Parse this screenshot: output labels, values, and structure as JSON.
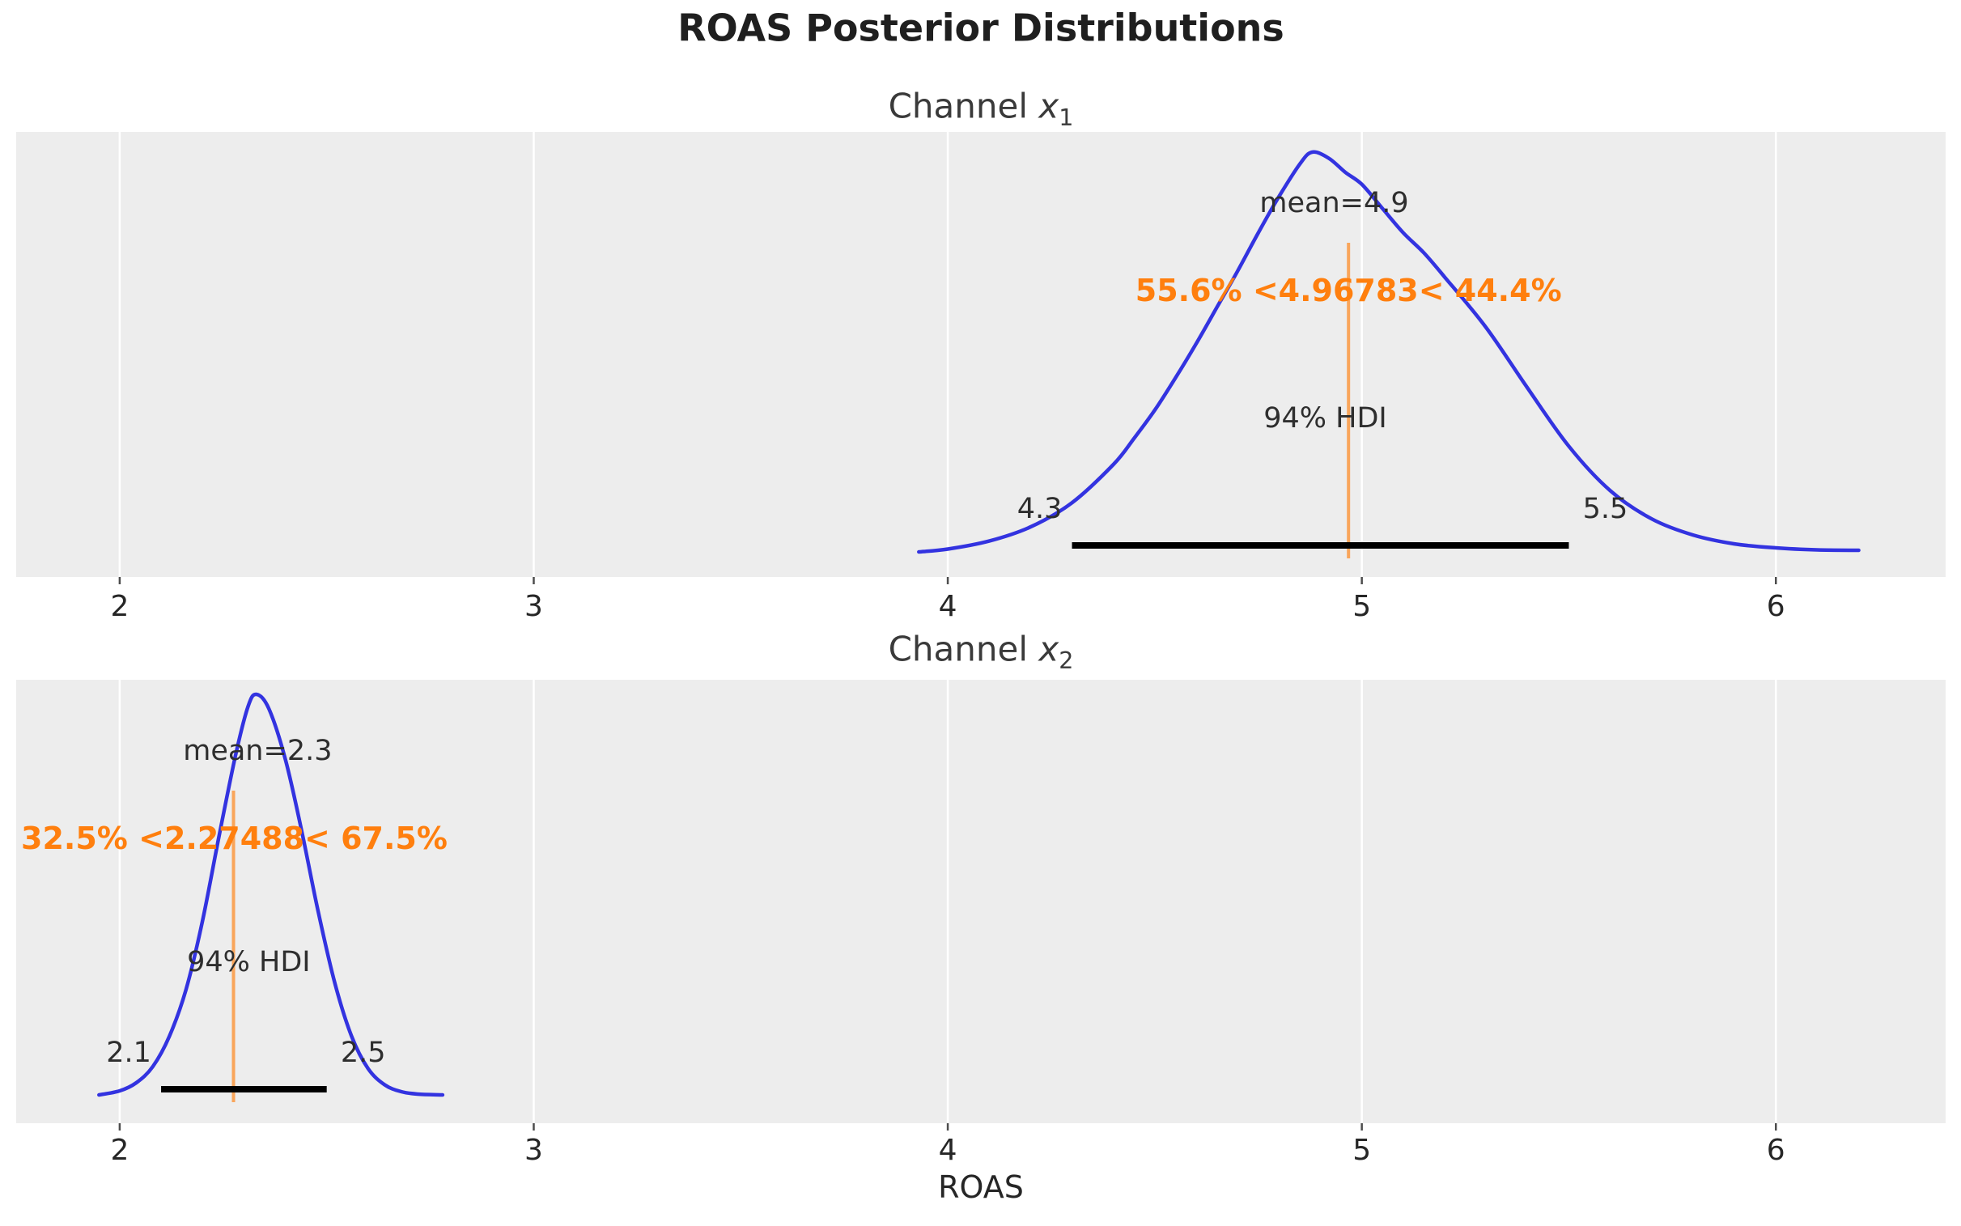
{
  "chart_data": {
    "type": "kde-posterior",
    "figure_title": "ROAS Posterior Distributions",
    "axis": {
      "xlabel": "ROAS",
      "ticks": [
        2,
        3,
        4,
        5,
        6
      ],
      "tick_labels": [
        "2",
        "3",
        "4",
        "5",
        "6"
      ],
      "x_min": 1.75,
      "x_max": 6.41,
      "grid": "vertical-white-gridlines-on-gray-panel"
    },
    "colors": {
      "curve": "#3333e0",
      "orange_text": "#ff7f0e",
      "ref_line": "rgba(255,127,14,0.66)",
      "panel_bg": "#ededed",
      "grid": "#ffffff",
      "hdi_bar": "#000000",
      "tick_mark": "#4d4d4d",
      "text": "#2e2e2e"
    },
    "charts": [
      {
        "type": "kde",
        "title_prefix": "Channel ",
        "title_var": "x",
        "title_sub": "1",
        "mean_label": "mean=4.9",
        "mean": 4.9,
        "ref_text": "55.6% <4.96783< 44.4%",
        "ref_value": 4.96783,
        "hdi_text": "94% HDI",
        "hdi_low": 4.3,
        "hdi_high": 5.5,
        "hdi_low_label": "4.3",
        "hdi_high_label": "5.5",
        "curve": {
          "x": [
            3.93,
            4.0,
            4.1,
            4.2,
            4.3,
            4.4,
            4.45,
            4.5,
            4.55,
            4.6,
            4.65,
            4.7,
            4.75,
            4.8,
            4.85,
            4.88,
            4.92,
            4.96,
            5.0,
            5.05,
            5.1,
            5.15,
            5.2,
            5.3,
            5.4,
            5.5,
            5.6,
            5.7,
            5.8,
            5.9,
            6.0,
            6.1,
            6.2
          ],
          "density": [
            0.008,
            0.015,
            0.035,
            0.07,
            0.13,
            0.225,
            0.29,
            0.36,
            0.44,
            0.525,
            0.615,
            0.705,
            0.8,
            0.89,
            0.97,
            1.0,
            0.985,
            0.95,
            0.92,
            0.86,
            0.8,
            0.75,
            0.69,
            0.565,
            0.415,
            0.27,
            0.16,
            0.09,
            0.05,
            0.028,
            0.018,
            0.013,
            0.012
          ]
        }
      },
      {
        "type": "kde",
        "title_prefix": "Channel ",
        "title_var": "x",
        "title_sub": "2",
        "mean_label": "mean=2.3",
        "mean": 2.3,
        "ref_text": "32.5% <2.27488< 67.5%",
        "ref_value": 2.27488,
        "hdi_text": "94% HDI",
        "hdi_low": 2.1,
        "hdi_high": 2.5,
        "hdi_low_label": "2.1",
        "hdi_high_label": "2.5",
        "curve": {
          "x": [
            1.95,
            2.0,
            2.04,
            2.08,
            2.12,
            2.16,
            2.2,
            2.24,
            2.28,
            2.31,
            2.33,
            2.36,
            2.4,
            2.44,
            2.48,
            2.52,
            2.56,
            2.6,
            2.64,
            2.68,
            2.72,
            2.78
          ],
          "density": [
            0.01,
            0.02,
            0.04,
            0.08,
            0.155,
            0.27,
            0.44,
            0.65,
            0.85,
            0.97,
            1.0,
            0.965,
            0.84,
            0.66,
            0.46,
            0.285,
            0.155,
            0.075,
            0.035,
            0.018,
            0.012,
            0.01
          ]
        }
      }
    ]
  }
}
